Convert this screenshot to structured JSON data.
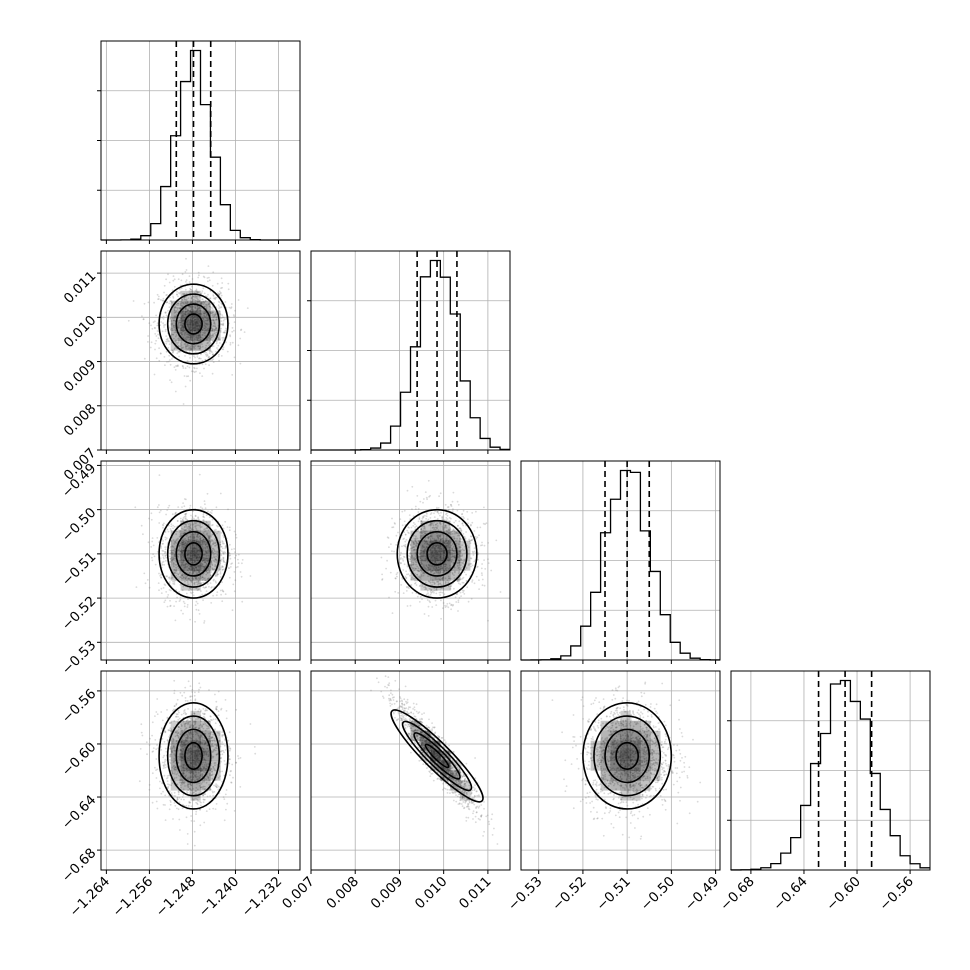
{
  "chart_data": {
    "type": "corner",
    "parameters": [
      {
        "mean": -1.2478,
        "std": 0.0032,
        "quantiles": [
          -1.251,
          -1.2478,
          -1.2446
        ],
        "range": [
          -1.265,
          -1.228
        ],
        "ticks": [
          -1.264,
          -1.256,
          -1.248,
          -1.24,
          -1.232
        ],
        "tick_labels": [
          "−1.264",
          "−1.256",
          "−1.248",
          "−1.240",
          "−1.232"
        ]
      },
      {
        "mean": 0.00985,
        "std": 0.00045,
        "quantiles": [
          0.0094,
          0.00985,
          0.0103
        ],
        "range": [
          0.007,
          0.0115
        ],
        "ticks": [
          0.007,
          0.008,
          0.009,
          0.01,
          0.011
        ],
        "tick_labels": [
          "0.007",
          "0.008",
          "0.009",
          "0.010",
          "0.011"
        ]
      },
      {
        "mean": -0.51,
        "std": 0.005,
        "quantiles": [
          -0.515,
          -0.51,
          -0.505
        ],
        "range": [
          -0.534,
          -0.489
        ],
        "ticks": [
          -0.53,
          -0.52,
          -0.51,
          -0.5,
          -0.49
        ],
        "tick_labels": [
          "−0.53",
          "−0.52",
          "−0.51",
          "−0.50",
          "−0.49"
        ]
      },
      {
        "mean": -0.609,
        "std": 0.02,
        "quantiles": [
          -0.629,
          -0.609,
          -0.589
        ],
        "range": [
          -0.695,
          -0.545
        ],
        "ticks": [
          -0.68,
          -0.64,
          -0.6,
          -0.56
        ],
        "tick_labels": [
          "−0.68",
          "−0.64",
          "−0.60",
          "−0.56"
        ]
      }
    ],
    "correlations": {
      "1-0": 0.0,
      "2-0": 0.0,
      "2-1": 0.0,
      "3-0": 0.0,
      "3-1": -0.92,
      "3-2": 0.0
    },
    "bins": 20,
    "contour_levels_sigma": [
      0.5,
      1.0,
      1.5,
      2.0
    ]
  }
}
